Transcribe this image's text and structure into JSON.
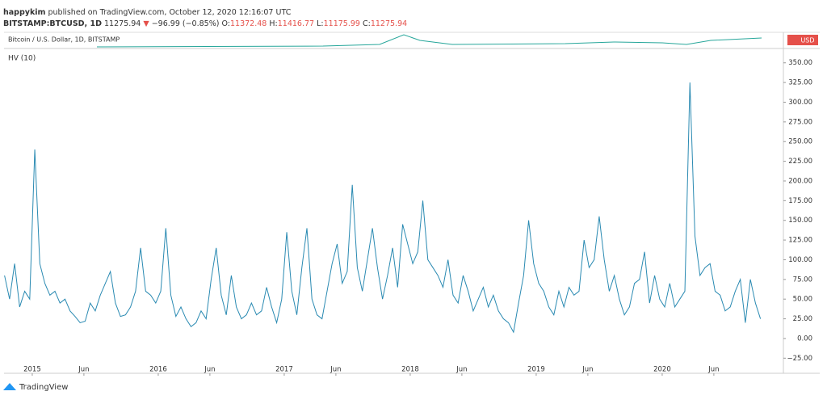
{
  "header": {
    "author": "happykim",
    "published": "published on TradingView.com, October 12, 2020 12:16:07 UTC",
    "symbol": "BITSTAMP:BTCUSD, 1D",
    "last": "11275.94",
    "arrow": "▼",
    "change": "−96.99 (−0.85%)",
    "open_label": "O:",
    "open": "11372.48",
    "high_label": "H:",
    "high": "11416.77",
    "low_label": "L:",
    "low": "11175.99",
    "close_label": "C:",
    "close": "11275.94",
    "pane_title": "Bitcoin / U.S. Dollar, 1D, BITSTAMP",
    "currency": "USD",
    "brand": "TradingView"
  },
  "chart_data": {
    "type": "line",
    "title": "HV (10)",
    "x": [
      2014.78,
      2014.82,
      2014.86,
      2014.9,
      2014.94,
      2014.98,
      2015.02,
      2015.06,
      2015.1,
      2015.14,
      2015.18,
      2015.22,
      2015.26,
      2015.3,
      2015.34,
      2015.38,
      2015.42,
      2015.46,
      2015.5,
      2015.54,
      2015.58,
      2015.62,
      2015.66,
      2015.7,
      2015.74,
      2015.78,
      2015.82,
      2015.86,
      2015.9,
      2015.94,
      2015.98,
      2016.02,
      2016.06,
      2016.1,
      2016.14,
      2016.18,
      2016.22,
      2016.26,
      2016.3,
      2016.34,
      2016.38,
      2016.42,
      2016.46,
      2016.5,
      2016.54,
      2016.58,
      2016.62,
      2016.66,
      2016.7,
      2016.74,
      2016.78,
      2016.82,
      2016.86,
      2016.9,
      2016.94,
      2016.98,
      2017.02,
      2017.06,
      2017.1,
      2017.14,
      2017.18,
      2017.22,
      2017.26,
      2017.3,
      2017.34,
      2017.38,
      2017.42,
      2017.46,
      2017.5,
      2017.54,
      2017.58,
      2017.62,
      2017.66,
      2017.7,
      2017.74,
      2017.78,
      2017.82,
      2017.86,
      2017.9,
      2017.94,
      2017.98,
      2018.02,
      2018.06,
      2018.1,
      2018.14,
      2018.18,
      2018.22,
      2018.26,
      2018.3,
      2018.34,
      2018.38,
      2018.42,
      2018.46,
      2018.5,
      2018.54,
      2018.58,
      2018.62,
      2018.66,
      2018.7,
      2018.74,
      2018.78,
      2018.82,
      2018.86,
      2018.9,
      2018.94,
      2018.98,
      2019.02,
      2019.06,
      2019.1,
      2019.14,
      2019.18,
      2019.22,
      2019.26,
      2019.3,
      2019.34,
      2019.38,
      2019.42,
      2019.46,
      2019.5,
      2019.54,
      2019.58,
      2019.62,
      2019.66,
      2019.7,
      2019.74,
      2019.78,
      2019.82,
      2019.86,
      2019.9,
      2019.94,
      2019.98,
      2020.02,
      2020.06,
      2020.1,
      2020.14,
      2020.18,
      2020.22,
      2020.26,
      2020.3,
      2020.34,
      2020.38,
      2020.42,
      2020.46,
      2020.5,
      2020.54,
      2020.58,
      2020.62,
      2020.66,
      2020.7,
      2020.74,
      2020.78
    ],
    "series": [
      {
        "name": "HV (10)",
        "color": "#2a8ab2",
        "values": [
          80,
          50,
          95,
          40,
          60,
          50,
          240,
          95,
          70,
          55,
          60,
          45,
          50,
          35,
          28,
          20,
          22,
          45,
          35,
          55,
          70,
          85,
          45,
          28,
          30,
          40,
          60,
          115,
          60,
          55,
          45,
          60,
          140,
          55,
          28,
          40,
          25,
          15,
          20,
          35,
          25,
          75,
          115,
          55,
          30,
          80,
          40,
          25,
          30,
          45,
          30,
          35,
          65,
          40,
          20,
          50,
          135,
          60,
          30,
          90,
          140,
          50,
          30,
          25,
          60,
          95,
          120,
          70,
          85,
          195,
          90,
          60,
          100,
          140,
          90,
          50,
          80,
          115,
          65,
          145,
          120,
          95,
          110,
          175,
          100,
          90,
          80,
          65,
          100,
          55,
          45,
          80,
          60,
          35,
          50,
          65,
          40,
          55,
          35,
          25,
          20,
          8,
          45,
          80,
          150,
          95,
          70,
          60,
          40,
          30,
          60,
          40,
          65,
          55,
          60,
          125,
          90,
          100,
          155,
          100,
          60,
          80,
          50,
          30,
          40,
          70,
          75,
          110,
          45,
          80,
          50,
          40,
          70,
          40,
          50,
          60,
          325,
          130,
          80,
          90,
          95,
          60,
          55,
          35,
          40,
          60,
          75,
          20,
          75,
          45,
          25
        ]
      }
    ],
    "xlim": [
      2014.776,
      2020.962
    ],
    "xticks": [
      {
        "value": 2015,
        "label": "2015"
      },
      {
        "value": 2015.41,
        "label": "Jun"
      },
      {
        "value": 2016,
        "label": "2016"
      },
      {
        "value": 2016.41,
        "label": "Jun"
      },
      {
        "value": 2017,
        "label": "2017"
      },
      {
        "value": 2017.41,
        "label": "Jun"
      },
      {
        "value": 2018,
        "label": "2018"
      },
      {
        "value": 2018.41,
        "label": "Jun"
      },
      {
        "value": 2019,
        "label": "2019"
      },
      {
        "value": 2019.41,
        "label": "Jun"
      },
      {
        "value": 2020,
        "label": "2020"
      },
      {
        "value": 2020.41,
        "label": "Jun"
      }
    ],
    "ylim": [
      -37,
      360
    ],
    "yticks": [
      {
        "value": -25,
        "label": "−25.00"
      },
      {
        "value": 0,
        "label": "0.00"
      },
      {
        "value": 25,
        "label": "25.00"
      },
      {
        "value": 50,
        "label": "50.00"
      },
      {
        "value": 75,
        "label": "75.00"
      },
      {
        "value": 100,
        "label": "100.00"
      },
      {
        "value": 125,
        "label": "125.00"
      },
      {
        "value": 150,
        "label": "150.00"
      },
      {
        "value": 175,
        "label": "175.00"
      },
      {
        "value": 200,
        "label": "200.00"
      },
      {
        "value": 225,
        "label": "225.00"
      },
      {
        "value": 250,
        "label": "250.00"
      },
      {
        "value": 275,
        "label": "275.00"
      },
      {
        "value": 300,
        "label": "300.00"
      },
      {
        "value": 325,
        "label": "325.00"
      },
      {
        "value": 350,
        "label": "350.00"
      }
    ],
    "grid": false
  }
}
